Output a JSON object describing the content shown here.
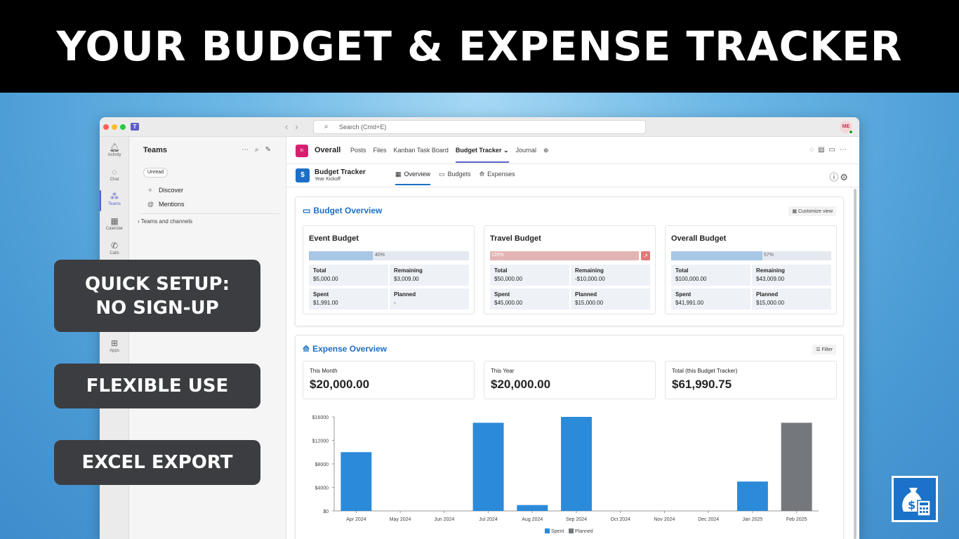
{
  "banner": {
    "title": "YOUR BUDGET & EXPENSE TRACKER"
  },
  "features": [
    "QUICK SETUP:",
    "NO SIGN-UP",
    "FLEXIBLE USE",
    "EXCEL EXPORT"
  ],
  "titlebar": {
    "search_placeholder": "Search (Cmd+E)",
    "avatar": "ME"
  },
  "rail": [
    {
      "label": "Activity",
      "icon": "bell-icon"
    },
    {
      "label": "Chat",
      "icon": "chat-icon"
    },
    {
      "label": "Teams",
      "icon": "teams-icon"
    },
    {
      "label": "Calendar",
      "icon": "calendar-icon"
    },
    {
      "label": "Calls",
      "icon": "phone-icon"
    },
    {
      "label": "Apps",
      "icon": "plus-square-icon"
    }
  ],
  "teams_panel": {
    "title": "Teams",
    "unread": "Unread",
    "discover": "Discover",
    "mentions": "Mentions",
    "channels": "Teams and channels"
  },
  "channel": {
    "icon_text": "In",
    "title": "Overall",
    "tabs": [
      "Posts",
      "Files",
      "Kanban Task Board",
      "Budget Tracker",
      "Journal"
    ],
    "active_tab": "Budget Tracker"
  },
  "app": {
    "name": "Budget Tracker",
    "subtitle": "Year Kickoff",
    "tabs": [
      "Overview",
      "Budgets",
      "Expenses"
    ]
  },
  "budget_overview": {
    "title": "Budget Overview",
    "customize": "Customize view",
    "budgets": [
      {
        "name": "Event Budget",
        "pct": 40,
        "pct_label": "40%",
        "over": false,
        "total": "$5,000.00",
        "remaining": "$3,009.00",
        "spent": "$1,991.00",
        "planned": "-"
      },
      {
        "name": "Travel Budget",
        "pct": 120,
        "pct_label": "120%",
        "over": true,
        "total": "$50,000.00",
        "remaining": "-$10,000.00",
        "spent": "$45,000.00",
        "planned": "$15,000.00"
      },
      {
        "name": "Overall Budget",
        "pct": 57,
        "pct_label": "57%",
        "over": false,
        "total": "$100,000.00",
        "remaining": "$43,009.00",
        "spent": "$41,991.00",
        "planned": "$15,000.00"
      }
    ],
    "labels": {
      "total": "Total",
      "remaining": "Remaining",
      "spent": "Spent",
      "planned": "Planned"
    }
  },
  "expense_overview": {
    "title": "Expense Overview",
    "filter": "Filter",
    "stats": [
      {
        "label": "This Month",
        "value": "$20,000.00"
      },
      {
        "label": "This Year",
        "value": "$20,000.00"
      },
      {
        "label": "Total (this Budget Tracker)",
        "value": "$61,990.75"
      }
    ]
  },
  "chart_data": {
    "type": "bar",
    "categories": [
      "Apr 2024",
      "May 2024",
      "Jun 2024",
      "Jul 2024",
      "Aug 2024",
      "Sep 2024",
      "Oct 2024",
      "Nov 2024",
      "Dec 2024",
      "Jan 2025",
      "Feb 2025"
    ],
    "series": [
      {
        "name": "Spent",
        "color": "#2b8ad9",
        "values": [
          10000,
          0,
          0,
          15000,
          1000,
          16000,
          0,
          0,
          0,
          5000,
          0
        ]
      },
      {
        "name": "Planned",
        "color": "#74777c",
        "values": [
          0,
          0,
          0,
          0,
          0,
          0,
          0,
          0,
          0,
          0,
          15000
        ]
      }
    ],
    "yticks": [
      "$0",
      "$4000",
      "$8000",
      "$12000",
      "$16000"
    ],
    "ylim": [
      0,
      16000
    ],
    "legend": "bottom"
  }
}
